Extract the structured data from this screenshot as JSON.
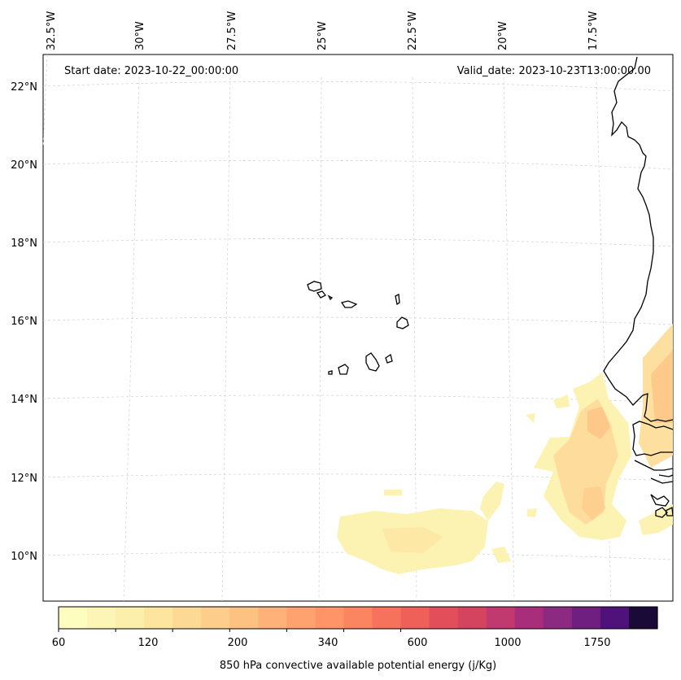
{
  "map": {
    "start_date": "Start date: 2023-10-22_00:00:00",
    "valid_date": "Valid_date: 2023-10-23T13:00:00.00",
    "lon_labels": [
      "32.5°W",
      "30°W",
      "27.5°W",
      "25°W",
      "22.5°W",
      "20°W",
      "17.5°W"
    ],
    "lat_labels": [
      "22°N",
      "20°N",
      "18°N",
      "16°N",
      "14°N",
      "12°N",
      "10°N"
    ]
  },
  "colorbar": {
    "label": "850 hPa convective available potential energy (j/Kg)",
    "ticks": [
      "60",
      "120",
      "200",
      "340",
      "600",
      "1000",
      "1750"
    ],
    "colors": [
      "#fcfdbf",
      "#fcf5b5",
      "#fceeab",
      "#fde5a0",
      "#fdd996",
      "#fdcd8c",
      "#fdc182",
      "#feb279",
      "#fea370",
      "#fe9468",
      "#fb8461",
      "#f6725c",
      "#ef6059",
      "#e34e5b",
      "#d4445f",
      "#c03a6f",
      "#a82e7c",
      "#8c2981",
      "#6f1f80",
      "#4f127b",
      "#1a0a37"
    ]
  },
  "colors": {
    "coast": "#000000",
    "grid": "#cccccc",
    "cape_light": "#fcf3b2",
    "cape_mid": "#fddc9c",
    "cape_high": "#fdc88a"
  }
}
